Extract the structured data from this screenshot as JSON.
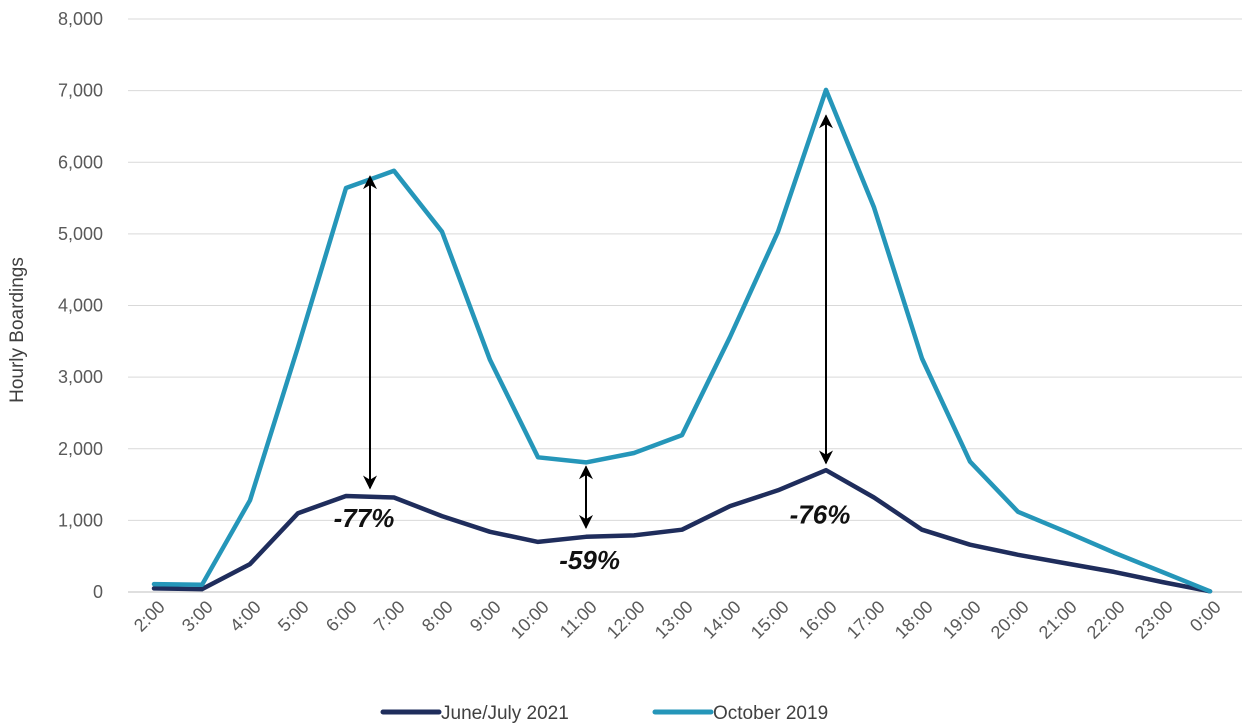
{
  "chart_data": {
    "type": "line",
    "ylabel": "Hourly Boardings",
    "xlabel": "",
    "ylim": [
      0,
      8000
    ],
    "yticks": [
      0,
      1000,
      2000,
      3000,
      4000,
      5000,
      6000,
      7000,
      8000
    ],
    "ytick_labels": [
      "0",
      "1,000",
      "2,000",
      "3,000",
      "4,000",
      "5,000",
      "6,000",
      "7,000",
      "8,000"
    ],
    "grid": "horizontal",
    "legend_position": "bottom",
    "categories": [
      "2:00",
      "3:00",
      "4:00",
      "5:00",
      "6:00",
      "7:00",
      "8:00",
      "9:00",
      "10:00",
      "11:00",
      "12:00",
      "13:00",
      "14:00",
      "15:00",
      "16:00",
      "17:00",
      "18:00",
      "19:00",
      "20:00",
      "21:00",
      "22:00",
      "23:00",
      "0:00"
    ],
    "series": [
      {
        "name": "June/July 2021",
        "color": "#1f2d5c",
        "values": [
          50,
          40,
          390,
          1100,
          1340,
          1320,
          1060,
          840,
          700,
          770,
          790,
          870,
          1200,
          1420,
          1700,
          1320,
          870,
          660,
          520,
          400,
          280,
          140,
          10
        ]
      },
      {
        "name": "October 2019",
        "color": "#2596b9",
        "values": [
          110,
          100,
          1280,
          3420,
          5640,
          5880,
          5030,
          3240,
          1880,
          1810,
          1940,
          2190,
          3560,
          5030,
          7010,
          5370,
          3260,
          1820,
          1120,
          840,
          550,
          280,
          10
        ]
      }
    ],
    "annotations": [
      {
        "text": "-77%",
        "x_index": 4.5,
        "y": 1030
      },
      {
        "text": "-59%",
        "x_index": 9.2,
        "y": 450
      },
      {
        "text": "-76%",
        "x_index": 14.0,
        "y": 1080
      }
    ],
    "arrows": [
      {
        "x_index": 4.5,
        "y_from": 1450,
        "y_to": 5800
      },
      {
        "x_index": 9.0,
        "y_from": 900,
        "y_to": 1750
      },
      {
        "x_index": 14.0,
        "y_from": 1800,
        "y_to": 6650
      }
    ]
  }
}
